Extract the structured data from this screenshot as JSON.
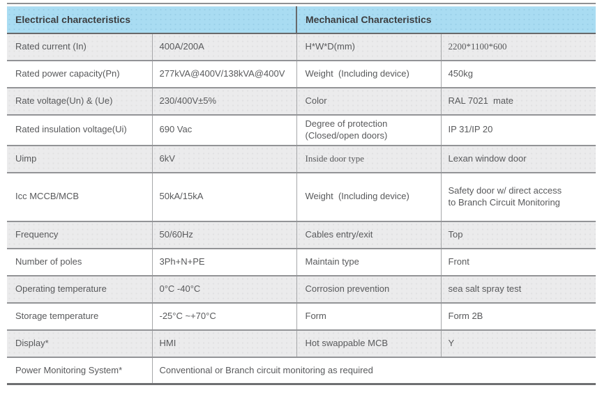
{
  "colors": {
    "header_bg": "#a9dcf2",
    "header_text": "#3c3d3f",
    "row_shade_bg": "#ebebec",
    "row_plain_bg": "#ffffff",
    "body_text": "#58595b",
    "h_border": "#929396",
    "v_border": "#a6a7a9",
    "header_divider": "#68696b",
    "top_rule": "#8f9093",
    "bottom_border": "#6e6f71"
  },
  "table": {
    "header_electrical": "Electrical characteristics",
    "header_mechanical": "Mechanical Characteristics",
    "rows": [
      {
        "shade": true,
        "e_label": "Rated current (In)",
        "e_value": "400A/200A",
        "m_label": "H*W*D(mm)",
        "m_value": "2200*1100*600",
        "m_value_font": "serif"
      },
      {
        "shade": false,
        "e_label": "Rated power capacity(Pn)",
        "e_value": "277kVA@400V/138kVA@400V",
        "m_label": "Weight  (Including device)",
        "m_value": "450kg"
      },
      {
        "shade": true,
        "e_label": "Rate voltage(Un) & (Ue)",
        "e_value": "230/400V±5%",
        "m_label": "Color",
        "m_value": "RAL 7021  mate"
      },
      {
        "shade": false,
        "e_label": "Rated insulation voltage(Ui)",
        "e_value": "690 Vac",
        "m_label": "Degree of protection\n(Closed/open doors)",
        "m_value": "IP 31/IP 20"
      },
      {
        "shade": true,
        "e_label": "Uimp",
        "e_value": "6kV",
        "m_label": "Inside door type",
        "m_label_font": "serif",
        "m_value": "Lexan window door"
      },
      {
        "shade": false,
        "e_label": "Icc MCCB/MCB",
        "e_value": "50kA/15kA",
        "m_label": "Weight  (Including device)",
        "m_value": "Safety door w/ direct access\nto Branch Circuit Monitoring"
      },
      {
        "shade": true,
        "e_label": "Frequency",
        "e_value": "50/60Hz",
        "m_label": "Cables entry/exit",
        "m_value": "Top"
      },
      {
        "shade": false,
        "e_label": "Number of poles",
        "e_value": "3Ph+N+PE",
        "m_label": "Maintain type",
        "m_value": "Front"
      },
      {
        "shade": true,
        "e_label": "Operating temperature",
        "e_value": "0°C -40°C",
        "m_label": "Corrosion prevention",
        "m_value": "sea salt spray test"
      },
      {
        "shade": false,
        "e_label": "Storage temperature",
        "e_value": "-25°C ~+70°C",
        "m_label": "Form",
        "m_value": "Form 2B"
      },
      {
        "shade": true,
        "e_label": "Display*",
        "e_value": "HMI",
        "m_label": "Hot swappable MCB",
        "m_value": "Y"
      },
      {
        "shade": false,
        "e_label": "Power Monitoring System*",
        "e_value": "Conventional or Branch circuit monitoring as required",
        "e_value_span": 3
      }
    ]
  }
}
